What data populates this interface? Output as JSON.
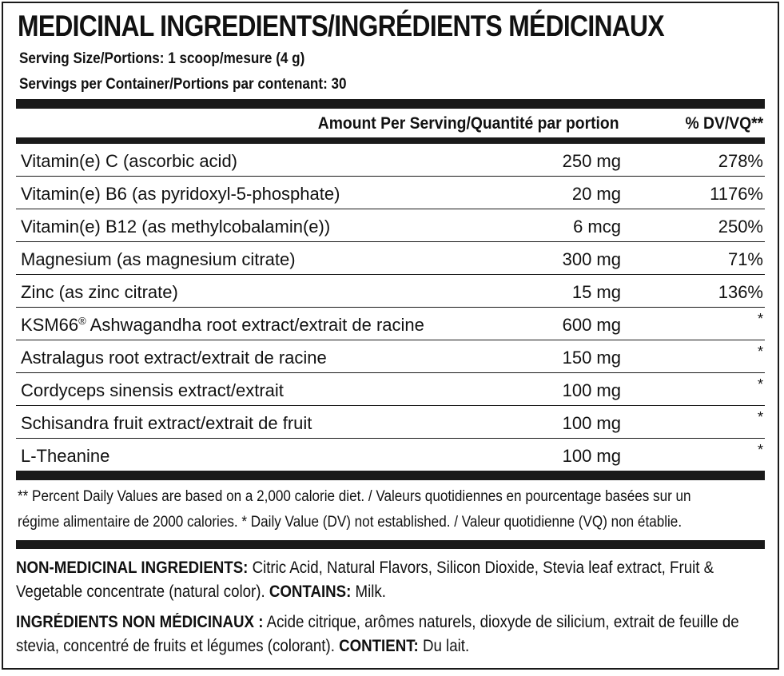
{
  "title": "MEDICINAL INGREDIENTS/INGRÉDIENTS MÉDICINAUX",
  "serving_size": "Serving Size/Portions: 1 scoop/mesure (4 g)",
  "servings_per_container": "Servings per Container/Portions par contenant: 30",
  "table": {
    "header_amount": "Amount Per Serving/Quantité par portion",
    "header_dv": "% DV/VQ**",
    "rows": [
      {
        "name": "Vitamin(e) C (ascorbic acid)",
        "amount": "250 mg",
        "dv": "278%"
      },
      {
        "name": "Vitamin(e) B6 (as pyridoxyl-5-phosphate)",
        "amount": "20 mg",
        "dv": "1176%"
      },
      {
        "name": "Vitamin(e) B12 (as methylcobalamin(e))",
        "amount": "6 mcg",
        "dv": "250%"
      },
      {
        "name": "Magnesium (as magnesium citrate)",
        "amount": "300 mg",
        "dv": "71%"
      },
      {
        "name": "Zinc (as zinc citrate)",
        "amount": "15 mg",
        "dv": "136%"
      },
      {
        "name_prefix": "KSM66",
        "name_mark": "®",
        "name_suffix": " Ashwagandha root extract/extrait de racine",
        "amount": "600 mg",
        "dv": "*"
      },
      {
        "name": "Astralagus root extract/extrait de racine",
        "amount": "150 mg",
        "dv": "*"
      },
      {
        "name": "Cordyceps sinensis extract/extrait",
        "amount": "100 mg",
        "dv": "*"
      },
      {
        "name": "Schisandra fruit extract/extrait de fruit",
        "amount": "100 mg",
        "dv": "*"
      },
      {
        "name": "L-Theanine",
        "amount": "100 mg",
        "dv": "*"
      }
    ]
  },
  "footnote": {
    "line1": "** Percent Daily Values are based on a 2,000 calorie diet. / Valeurs quotidiennes en pourcentage basées sur un",
    "line2": "régime alimentaire de 2000 calories. * Daily Value (DV) not established. / Valeur quotidienne (VQ) non établie."
  },
  "non_medicinal_en": {
    "label": "NON-MEDICINAL INGREDIENTS:",
    "text": " Citric Acid, Natural Flavors, Silicon Dioxide, Stevia leaf extract, Fruit & Vegetable concentrate (natural color). ",
    "contains_label": "CONTAINS:",
    "contains_text": " Milk."
  },
  "non_medicinal_fr": {
    "label": "INGRÉDIENTS NON MÉDICINAUX :",
    "text": " Acide citrique, arômes naturels, dioxyde de silicium, extrait de feuille de stevia, concentré de fruits et légumes (colorant). ",
    "contains_label": "CONTIENT:",
    "contains_text": " Du lait."
  }
}
